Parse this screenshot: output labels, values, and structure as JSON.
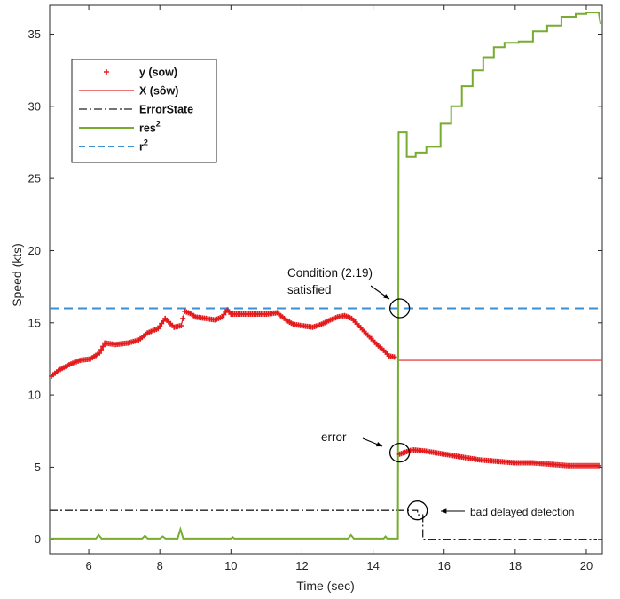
{
  "chart_data": {
    "type": "line",
    "xlabel": "Time (sec)",
    "ylabel": "Speed (kts)",
    "xlim": [
      4.9,
      20.45
    ],
    "ylim": [
      -1,
      37
    ],
    "xticks": [
      6,
      8,
      10,
      12,
      14,
      16,
      18,
      20
    ],
    "yticks": [
      0,
      5,
      10,
      15,
      20,
      25,
      30,
      35
    ],
    "legend_position": "top-left",
    "colors": {
      "y": "#e41a1c",
      "X": "#e8474a",
      "error_state": "#222222",
      "res2": "#77ac30",
      "r2": "#3b8fd4"
    },
    "series": [
      {
        "name": "y (sow)",
        "style": "red-plus-markers",
        "points": [
          [
            4.95,
            11.3
          ],
          [
            5.15,
            11.7
          ],
          [
            5.45,
            12.1
          ],
          [
            5.75,
            12.4
          ],
          [
            6.05,
            12.5
          ],
          [
            6.3,
            12.9
          ],
          [
            6.45,
            13.6
          ],
          [
            6.75,
            13.5
          ],
          [
            7.1,
            13.6
          ],
          [
            7.4,
            13.8
          ],
          [
            7.65,
            14.3
          ],
          [
            7.95,
            14.6
          ],
          [
            8.15,
            15.3
          ],
          [
            8.4,
            14.7
          ],
          [
            8.6,
            14.8
          ],
          [
            8.7,
            15.8
          ],
          [
            8.9,
            15.6
          ],
          [
            9.0,
            15.4
          ],
          [
            9.3,
            15.3
          ],
          [
            9.55,
            15.2
          ],
          [
            9.75,
            15.4
          ],
          [
            9.9,
            15.9
          ],
          [
            10.0,
            15.6
          ],
          [
            10.3,
            15.6
          ],
          [
            10.7,
            15.6
          ],
          [
            11.0,
            15.6
          ],
          [
            11.3,
            15.7
          ],
          [
            11.55,
            15.2
          ],
          [
            11.75,
            14.9
          ],
          [
            12.0,
            14.8
          ],
          [
            12.3,
            14.7
          ],
          [
            12.55,
            14.9
          ],
          [
            12.8,
            15.2
          ],
          [
            13.0,
            15.4
          ],
          [
            13.2,
            15.5
          ],
          [
            13.4,
            15.3
          ],
          [
            13.6,
            14.8
          ],
          [
            13.75,
            14.4
          ],
          [
            13.95,
            13.9
          ],
          [
            14.15,
            13.4
          ],
          [
            14.3,
            13.1
          ],
          [
            14.45,
            12.7
          ],
          [
            14.65,
            12.6
          ]
        ]
      },
      {
        "name": "X (sôw)",
        "points": [
          [
            14.72,
            12.4
          ],
          [
            20.45,
            12.4
          ]
        ]
      },
      {
        "name": "ErrorState",
        "points": [
          [
            4.9,
            2
          ],
          [
            15.25,
            2
          ],
          [
            15.25,
            1.7
          ],
          [
            15.4,
            1.7
          ],
          [
            15.4,
            0
          ],
          [
            20.3,
            0
          ]
        ]
      },
      {
        "name": "res",
        "points": [
          [
            4.9,
            0.05
          ],
          [
            6.2,
            0.05
          ],
          [
            6.28,
            0.3
          ],
          [
            6.36,
            0.05
          ],
          [
            7.5,
            0.05
          ],
          [
            7.58,
            0.25
          ],
          [
            7.66,
            0.05
          ],
          [
            8.0,
            0.05
          ],
          [
            8.08,
            0.2
          ],
          [
            8.16,
            0.05
          ],
          [
            8.5,
            0.05
          ],
          [
            8.58,
            0.7
          ],
          [
            8.66,
            0.05
          ],
          [
            10.0,
            0.05
          ],
          [
            10.05,
            0.15
          ],
          [
            10.1,
            0.05
          ],
          [
            13.3,
            0.05
          ],
          [
            13.38,
            0.3
          ],
          [
            13.46,
            0.05
          ],
          [
            14.3,
            0.05
          ],
          [
            14.35,
            0.2
          ],
          [
            14.4,
            0.05
          ],
          [
            14.7,
            0.05
          ],
          [
            14.72,
            28.2
          ],
          [
            14.95,
            28.2
          ],
          [
            14.95,
            26.5
          ],
          [
            15.2,
            26.5
          ],
          [
            15.2,
            26.8
          ],
          [
            15.5,
            26.8
          ],
          [
            15.5,
            27.2
          ],
          [
            15.9,
            27.2
          ],
          [
            15.9,
            28.8
          ],
          [
            16.2,
            28.8
          ],
          [
            16.2,
            30.0
          ],
          [
            16.5,
            30.0
          ],
          [
            16.5,
            31.4
          ],
          [
            16.8,
            31.4
          ],
          [
            16.8,
            32.5
          ],
          [
            17.1,
            32.5
          ],
          [
            17.1,
            33.4
          ],
          [
            17.4,
            33.4
          ],
          [
            17.4,
            34.1
          ],
          [
            17.7,
            34.1
          ],
          [
            17.7,
            34.4
          ],
          [
            18.1,
            34.4
          ],
          [
            18.1,
            34.5
          ],
          [
            18.5,
            34.5
          ],
          [
            18.5,
            35.2
          ],
          [
            18.9,
            35.2
          ],
          [
            18.9,
            35.6
          ],
          [
            19.3,
            35.6
          ],
          [
            19.3,
            36.2
          ],
          [
            19.7,
            36.2
          ],
          [
            19.7,
            36.4
          ],
          [
            20.0,
            36.4
          ],
          [
            20.0,
            36.5
          ],
          [
            20.35,
            36.5
          ],
          [
            20.4,
            35.7
          ]
        ]
      },
      {
        "name": "r",
        "points": [
          [
            4.9,
            16
          ],
          [
            20.45,
            16
          ]
        ]
      },
      {
        "name": "error_segment",
        "style": "red-plus-markers",
        "points": [
          [
            14.75,
            5.9
          ],
          [
            15.1,
            6.2
          ],
          [
            15.5,
            6.1
          ],
          [
            16.0,
            5.9
          ],
          [
            16.5,
            5.7
          ],
          [
            17.0,
            5.5
          ],
          [
            17.5,
            5.4
          ],
          [
            18.0,
            5.3
          ],
          [
            18.5,
            5.3
          ],
          [
            19.0,
            5.2
          ],
          [
            19.5,
            5.1
          ],
          [
            20.0,
            5.1
          ],
          [
            20.4,
            5.1
          ]
        ]
      }
    ],
    "legend": [
      {
        "label": "y (sow)",
        "sup": "",
        "style": "plus"
      },
      {
        "label": "X (sôw)",
        "sup": "",
        "style": "solid-red"
      },
      {
        "label": "ErrorState",
        "sup": "",
        "style": "dashdot"
      },
      {
        "label": "res",
        "sup": "2",
        "style": "solid-green"
      },
      {
        "label": "r",
        "sup": "2",
        "style": "dashed-blue"
      }
    ],
    "annotations": {
      "condition_line1": "Condition (2.19)",
      "condition_line2": "satisfied",
      "error": "error",
      "bad_detection": "bad delayed detection"
    },
    "circles": [
      [
        14.75,
        16
      ],
      [
        14.75,
        6
      ],
      [
        15.25,
        2
      ]
    ]
  }
}
